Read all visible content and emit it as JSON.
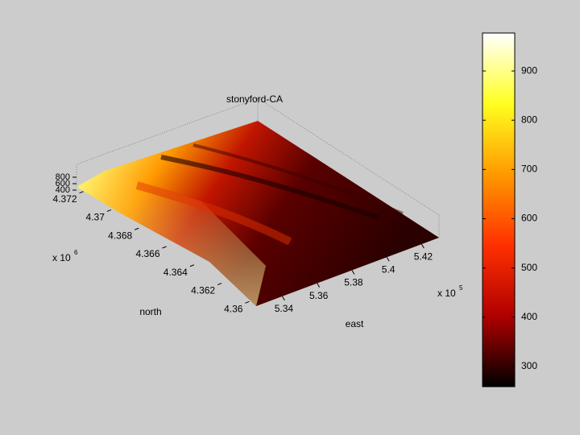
{
  "chart_data": {
    "type": "surface",
    "title": "stonyford-CA",
    "xlabel": "east",
    "ylabel": "north",
    "x_multiplier": "x 10",
    "x_exponent": "5",
    "y_multiplier": "x 10",
    "y_exponent": "6",
    "xlim": [
      5.325,
      5.43
    ],
    "xticks": [
      5.34,
      5.36,
      5.38,
      5.4,
      5.42
    ],
    "ylim": [
      4.3595,
      4.3725
    ],
    "yticks": [
      4.36,
      4.362,
      4.364,
      4.366,
      4.368,
      4.37,
      4.372
    ],
    "zlim": [
      300,
      1000
    ],
    "zticks": [
      400,
      600,
      800
    ],
    "colormap": [
      "#000000",
      "#b00000",
      "#ff3000",
      "#ff9900",
      "#ffff20",
      "#ffffff"
    ],
    "clim": [
      259,
      977
    ],
    "cticks": [
      300,
      400,
      500,
      600,
      700,
      800,
      900
    ]
  }
}
